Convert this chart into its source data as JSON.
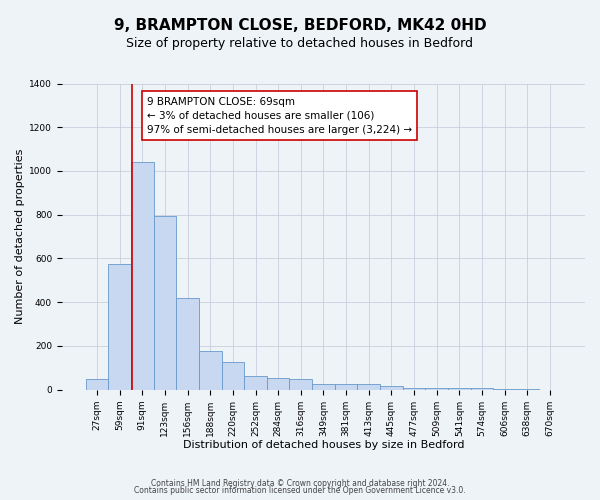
{
  "title": "9, BRAMPTON CLOSE, BEDFORD, MK42 0HD",
  "subtitle": "Size of property relative to detached houses in Bedford",
  "xlabel": "Distribution of detached houses by size in Bedford",
  "ylabel": "Number of detached properties",
  "categories": [
    "27sqm",
    "59sqm",
    "91sqm",
    "123sqm",
    "156sqm",
    "188sqm",
    "220sqm",
    "252sqm",
    "284sqm",
    "316sqm",
    "349sqm",
    "381sqm",
    "413sqm",
    "445sqm",
    "477sqm",
    "509sqm",
    "541sqm",
    "574sqm",
    "606sqm",
    "638sqm",
    "670sqm"
  ],
  "bar_values": [
    50,
    575,
    1040,
    795,
    420,
    178,
    125,
    63,
    55,
    47,
    27,
    25,
    25,
    15,
    10,
    8,
    8,
    6,
    5,
    5,
    0
  ],
  "bar_color": "#c8d8f0",
  "bar_edge_color": "#6699cc",
  "vline_x_index": 1.55,
  "vline_color": "#cc0000",
  "ylim": [
    0,
    1400
  ],
  "yticks": [
    0,
    200,
    400,
    600,
    800,
    1000,
    1200,
    1400
  ],
  "annotation_text": "9 BRAMPTON CLOSE: 69sqm\n← 3% of detached houses are smaller (106)\n97% of semi-detached houses are larger (3,224) →",
  "annotation_box_color": "#ffffff",
  "annotation_box_edge": "#cc0000",
  "footer1": "Contains HM Land Registry data © Crown copyright and database right 2024.",
  "footer2": "Contains public sector information licensed under the Open Government Licence v3.0.",
  "background_color": "#eef3f8",
  "plot_background": "#eef3f8",
  "title_fontsize": 11,
  "subtitle_fontsize": 9,
  "axis_label_fontsize": 8,
  "tick_fontsize": 6.5,
  "annotation_fontsize": 7.5,
  "footer_fontsize": 5.5,
  "ylabel_fontsize": 8
}
